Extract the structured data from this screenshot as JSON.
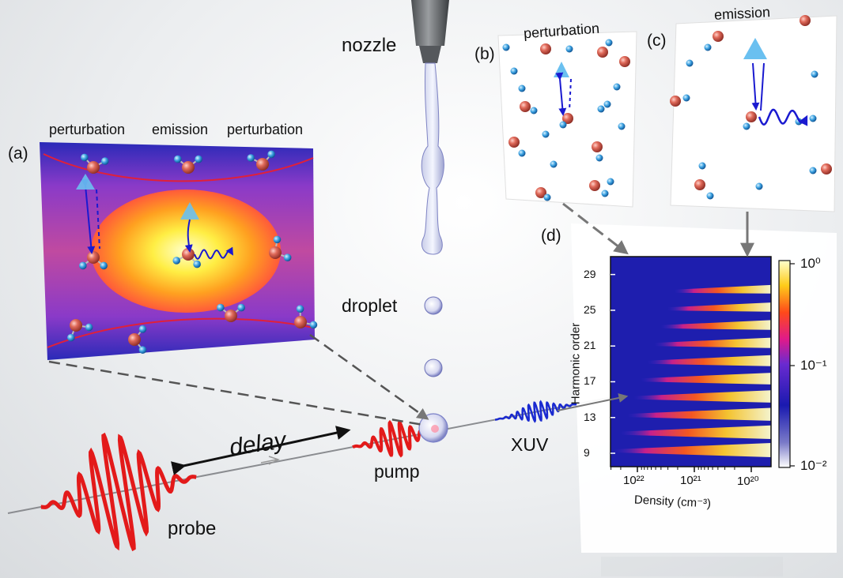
{
  "labels": {
    "nozzle": "nozzle",
    "droplet": "droplet",
    "delay": "delay",
    "pump": "pump",
    "probe": "probe",
    "xuv": "XUV"
  },
  "panel_a": {
    "tag": "(a)",
    "top_labels": [
      "perturbation",
      "emission",
      "perturbation"
    ]
  },
  "panel_b": {
    "tag": "(b)",
    "title": "perturbation"
  },
  "panel_c": {
    "tag": "(c)",
    "title": "emission"
  },
  "panel_d": {
    "tag": "(d)",
    "ylabel": "Harmonic order",
    "xlabel": "Density (cm⁻³)",
    "yticks": [
      "29",
      "25",
      "21",
      "17",
      "13",
      "9"
    ],
    "xticks": [
      "10²²",
      "10²¹",
      "10²⁰"
    ],
    "cbar_ticks": [
      "10⁰",
      "10⁻¹",
      "10⁻²"
    ]
  },
  "chart_data": {
    "type": "heatmap",
    "xlabel": "Density (cm⁻³)",
    "ylabel": "Harmonic order",
    "x_tick_labels": [
      "1e22",
      "1e21",
      "1e20"
    ],
    "y_tick_labels": [
      29,
      25,
      21,
      17,
      13,
      9
    ],
    "harmonics": [
      9,
      11,
      13,
      15,
      17,
      19,
      21,
      23,
      25,
      27
    ],
    "colorbar_range": [
      0.01,
      1
    ],
    "colorbar_scale": "log",
    "colormap": [
      "#1a1aa8",
      "#3a2fd0",
      "#7a2fd0",
      "#d81a8a",
      "#ff3a2a",
      "#ff9a1a",
      "#ffee3a",
      "#ffffb0"
    ]
  }
}
